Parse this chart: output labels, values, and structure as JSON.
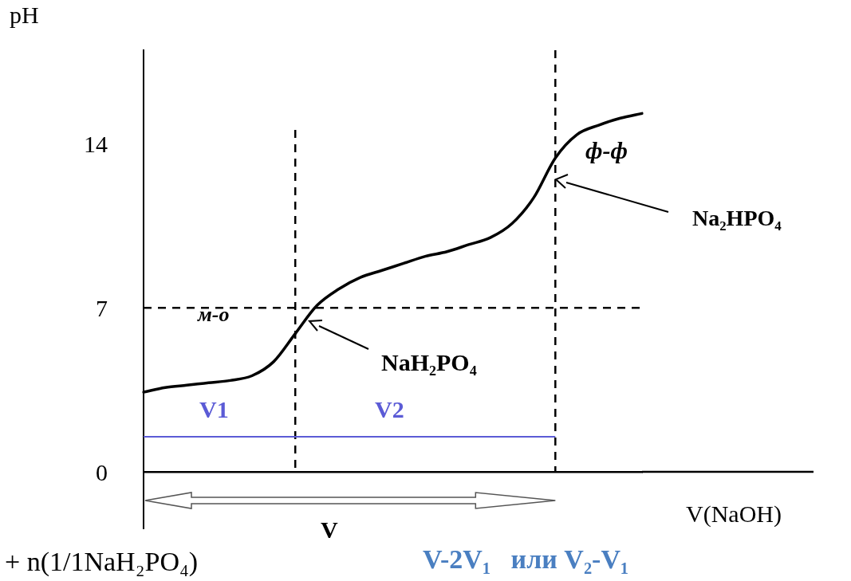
{
  "chart_data": {
    "type": "line",
    "ylabel": "pH",
    "categories": [
      null,
      null,
      null,
      null,
      null,
      null,
      null,
      null,
      null,
      null,
      null,
      null,
      null,
      null,
      null,
      null,
      null,
      null,
      null,
      null,
      null,
      null,
      null,
      null
    ],
    "series": [
      {
        "color": "#000000",
        "values": [
          3.4,
          3.6,
          3.7,
          3.8,
          3.9,
          4.1,
          4.7,
          5.9,
          7.1,
          7.8,
          8.3,
          8.6,
          8.9,
          9.2,
          9.4,
          9.7,
          10.0,
          10.6,
          11.7,
          13.4,
          14.4,
          14.8,
          15.1,
          15.3
        ]
      }
    ],
    "ylim": [
      0,
      18
    ],
    "yticks": [
      0,
      7,
      14
    ],
    "grid": false,
    "legend": false,
    "marker": "none",
    "line_style": "solid",
    "tick_labels": "y",
    "ref_lines": [
      {
        "axis": "y",
        "value": 7,
        "color": "#000000",
        "line_style": "dashed"
      },
      {
        "axis": "y",
        "value": 1.5,
        "color": "#5b5bd6",
        "line_style": "solid"
      }
    ],
    "annotations": [
      "м-о",
      "NaH₂PO₄",
      "ф-ф",
      "Na₂HPO₄",
      "V1",
      "V2",
      "V",
      "V-2V₁   или V₂-V₁",
      "+ n(1/1NaH₂PO₄)",
      "V(NaOH)"
    ]
  }
}
